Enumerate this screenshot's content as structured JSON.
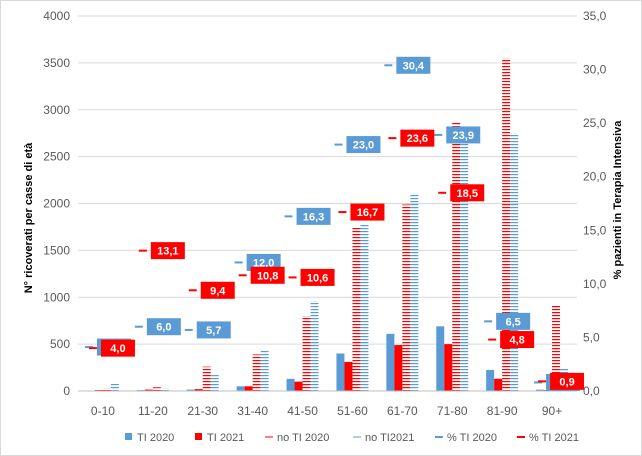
{
  "chart_data": {
    "type": "bar",
    "categories": [
      "0-10",
      "11-20",
      "21-30",
      "31-40",
      "41-50",
      "51-60",
      "61-70",
      "71-80",
      "81-90",
      "90+"
    ],
    "ylabel": "N° ricoverati per casse di età",
    "ylabel2": "% pazienti in Terapia Intensiva",
    "ylim": [
      0,
      4000
    ],
    "ylim2": [
      0,
      35
    ],
    "yticks": [
      "0",
      "500",
      "1000",
      "1500",
      "2000",
      "2500",
      "3000",
      "3500",
      "4000"
    ],
    "yticks2": [
      "0,0",
      "5,0",
      "10,0",
      "15,0",
      "20,0",
      "25,0",
      "30,0",
      "35,0"
    ],
    "grid": true,
    "legend_position": "bottom",
    "series": [
      {
        "name": "TI 2020",
        "axis": "left",
        "style": "solid",
        "color": "#5b9bd5",
        "values": [
          5,
          10,
          15,
          50,
          130,
          400,
          610,
          690,
          225,
          15
        ]
      },
      {
        "name": "TI 2021",
        "axis": "left",
        "style": "solid",
        "color": "#ff0000",
        "values": [
          10,
          15,
          20,
          50,
          100,
          310,
          490,
          500,
          130,
          10
        ]
      },
      {
        "name": "no TI 2020",
        "axis": "left",
        "style": "hatched",
        "color": "#ff0000",
        "values": [
          30,
          40,
          260,
          390,
          800,
          1740,
          1990,
          2860,
          3550,
          920
        ]
      },
      {
        "name": "no TI2021",
        "axis": "left",
        "style": "hatched",
        "color": "#5b9bd5",
        "values": [
          80,
          30,
          170,
          430,
          960,
          1780,
          2110,
          2820,
          2750,
          240
        ]
      },
      {
        "name": "% TI 2020",
        "axis": "right",
        "style": "marker",
        "color": "#5b9bd5",
        "values": [
          4.1,
          6.0,
          5.7,
          12.0,
          16.3,
          23.0,
          30.4,
          23.9,
          6.5,
          0.8
        ],
        "labels": [
          "4,1",
          "6,0",
          "5,7",
          "12,0",
          "16,3",
          "23,0",
          "30,4",
          "23,9",
          "6,5",
          "0,8"
        ]
      },
      {
        "name": "% TI 2021",
        "axis": "right",
        "style": "marker",
        "color": "#ff0000",
        "values": [
          4.0,
          13.1,
          9.4,
          10.8,
          10.6,
          16.7,
          23.6,
          18.5,
          4.8,
          0.9
        ],
        "labels": [
          "4,0",
          "13,1",
          "9,4",
          "10,8",
          "10,6",
          "16,7",
          "23,6",
          "18,5",
          "4,8",
          "0,9"
        ]
      }
    ]
  }
}
